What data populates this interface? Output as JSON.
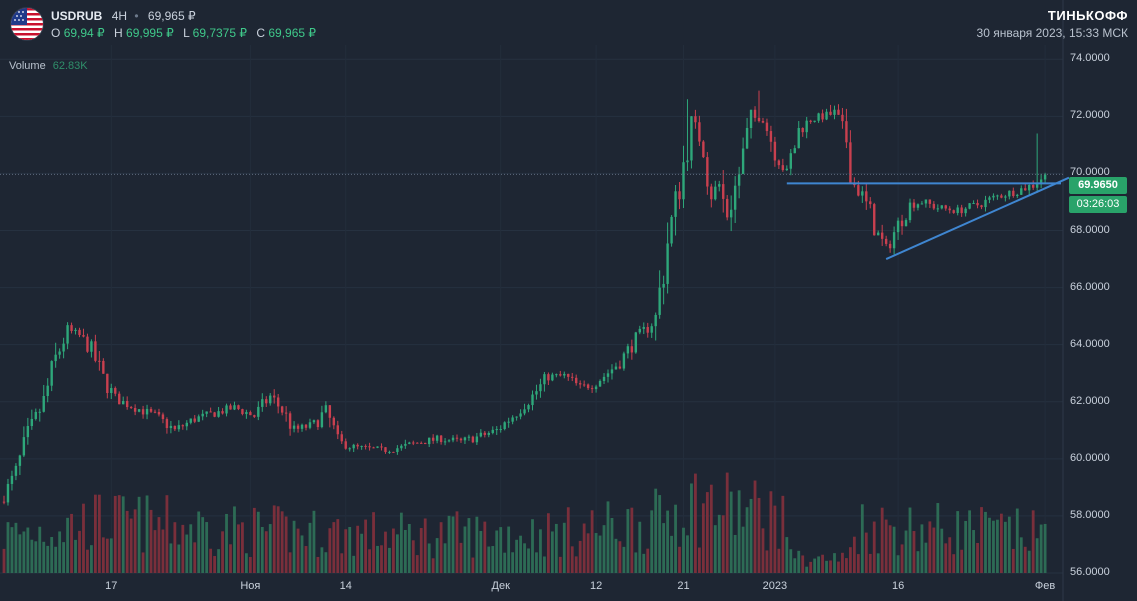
{
  "header": {
    "symbol": "USDRUB",
    "timeframe": "4H",
    "last": "69,965 ₽",
    "ohlc": [
      {
        "label": "O",
        "value": "69,94 ₽"
      },
      {
        "label": "H",
        "value": "69,995 ₽"
      },
      {
        "label": "L",
        "value": "69,7375 ₽"
      },
      {
        "label": "C",
        "value": "69,965 ₽"
      }
    ],
    "brand": "ТИНЬКОФФ",
    "datetime": "30 января 2023, 15:33 МСК"
  },
  "volume": {
    "label": "Volume",
    "value": "62.83K"
  },
  "price_badge": "69.9650",
  "countdown_badge": "03:26:03",
  "colors": {
    "background": "#1e2633",
    "up": "#2ea77a",
    "down": "#c9404f",
    "volume_up": "#2d6b55",
    "volume_down": "#7a2f3b",
    "trendline": "#3f86d1",
    "badge": "#29a36a"
  },
  "chart_data": {
    "type": "candlestick",
    "ylim": [
      56.0,
      74.5
    ],
    "y_ticks": [
      "74.0000",
      "72.0000",
      "70.0000",
      "68.0000",
      "66.0000",
      "64.0000",
      "62.0000",
      "60.0000",
      "58.0000",
      "56.0000"
    ],
    "x_ticks": [
      "17",
      "Ноя",
      "14",
      "Дек",
      "12",
      "21",
      "2023",
      "16",
      "Фев"
    ],
    "x_tick_index": [
      27,
      62,
      86,
      125,
      149,
      171,
      194,
      225,
      262
    ],
    "close_path": [
      [
        0,
        58.7
      ],
      [
        3,
        59.5
      ],
      [
        6,
        60.8
      ],
      [
        10,
        62.0
      ],
      [
        13,
        63.5
      ],
      [
        16,
        64.5
      ],
      [
        19,
        64.3
      ],
      [
        22,
        63.8
      ],
      [
        25,
        62.8
      ],
      [
        28,
        62.1
      ],
      [
        33,
        61.8
      ],
      [
        38,
        61.5
      ],
      [
        43,
        61.0
      ],
      [
        48,
        61.4
      ],
      [
        53,
        61.6
      ],
      [
        58,
        61.8
      ],
      [
        63,
        61.5
      ],
      [
        67,
        62.2
      ],
      [
        70,
        61.7
      ],
      [
        73,
        61.0
      ],
      [
        78,
        61.2
      ],
      [
        81,
        61.7
      ],
      [
        84,
        60.6
      ],
      [
        88,
        60.4
      ],
      [
        95,
        60.3
      ],
      [
        100,
        60.4
      ],
      [
        105,
        60.6
      ],
      [
        110,
        60.7
      ],
      [
        115,
        60.6
      ],
      [
        120,
        60.8
      ],
      [
        124,
        61.0
      ],
      [
        128,
        61.5
      ],
      [
        133,
        62.2
      ],
      [
        137,
        62.9
      ],
      [
        141,
        62.9
      ],
      [
        145,
        62.5
      ],
      [
        148,
        62.6
      ],
      [
        151,
        62.9
      ],
      [
        155,
        63.4
      ],
      [
        159,
        64.2
      ],
      [
        162,
        64.6
      ],
      [
        164,
        64.9
      ],
      [
        167,
        67.6
      ],
      [
        170,
        69.6
      ],
      [
        173,
        71.8
      ],
      [
        176,
        71.0
      ],
      [
        178,
        69.3
      ],
      [
        180,
        69.6
      ],
      [
        182,
        68.5
      ],
      [
        185,
        70.0
      ],
      [
        188,
        71.9
      ],
      [
        191,
        72.0
      ],
      [
        194,
        70.8
      ],
      [
        197,
        70.0
      ],
      [
        200,
        71.5
      ],
      [
        203,
        71.9
      ],
      [
        206,
        72.0
      ],
      [
        209,
        72.1
      ],
      [
        212,
        71.2
      ],
      [
        214,
        69.6
      ],
      [
        216,
        69.2
      ],
      [
        218,
        68.6
      ],
      [
        220,
        67.8
      ],
      [
        222,
        67.4
      ],
      [
        225,
        68.2
      ],
      [
        228,
        68.9
      ],
      [
        231,
        69.0
      ],
      [
        235,
        68.8
      ],
      [
        240,
        68.7
      ],
      [
        245,
        68.9
      ],
      [
        250,
        69.2
      ],
      [
        255,
        69.4
      ],
      [
        259,
        69.6
      ],
      [
        262,
        69.965
      ]
    ],
    "spikes": [
      {
        "i": 172,
        "h": 72.6
      },
      {
        "i": 190,
        "h": 72.9
      },
      {
        "i": 208,
        "h": 72.4
      },
      {
        "i": 260,
        "h": 71.4
      }
    ],
    "volume_profile": [
      [
        0,
        40
      ],
      [
        25,
        55
      ],
      [
        60,
        45
      ],
      [
        100,
        40
      ],
      [
        140,
        42
      ],
      [
        165,
        55
      ],
      [
        171,
        75
      ],
      [
        195,
        60
      ],
      [
        200,
        15
      ],
      [
        212,
        15
      ],
      [
        215,
        50
      ],
      [
        245,
        45
      ],
      [
        262,
        40
      ]
    ],
    "horizontal_line": {
      "y": 69.65,
      "from": 197,
      "to": 266
    },
    "trend_line": {
      "from": [
        222,
        67.0
      ],
      "to": [
        268,
        69.85
      ]
    },
    "current_price": 69.965
  }
}
